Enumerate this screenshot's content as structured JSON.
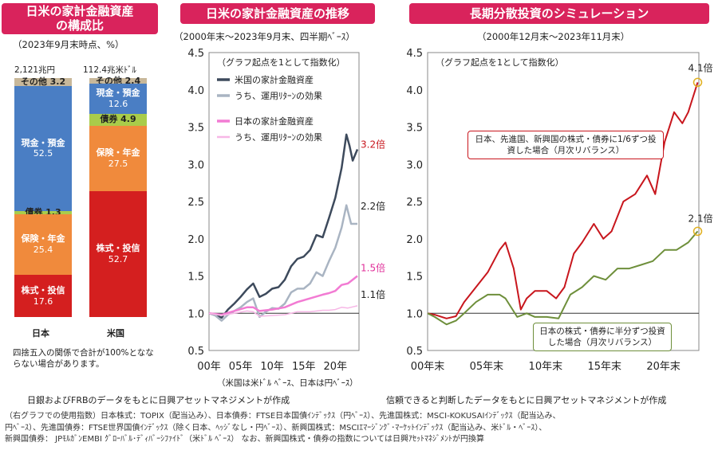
{
  "panels": {
    "composition": {
      "title_line1": "日米の家計金融資産",
      "title_line2": "の構成比",
      "subtitle": "（2023年9月末時点、%）",
      "japan": {
        "total": "2,121兆円",
        "label": "日本",
        "segments": [
          {
            "name": "その他",
            "value": 3.2,
            "color": "#c8b89a"
          },
          {
            "name": "現金・預金",
            "value": 52.5,
            "color": "#4a7ec4"
          },
          {
            "name": "債券",
            "value": 1.3,
            "color": "#a9cc4a"
          },
          {
            "name": "保険・年金",
            "value": 25.4,
            "color": "#f08a3c"
          },
          {
            "name": "株式・投信",
            "value": 17.6,
            "color": "#d41f1f"
          }
        ]
      },
      "us": {
        "total": "112.4兆米ﾄﾞﾙ",
        "label": "米国",
        "segments": [
          {
            "name": "その他",
            "value": 2.4,
            "color": "#c8b89a"
          },
          {
            "name": "現金・預金",
            "value": 12.6,
            "color": "#4a7ec4"
          },
          {
            "name": "債券",
            "value": 4.9,
            "color": "#a9cc4a"
          },
          {
            "name": "保険・年金",
            "value": 27.5,
            "color": "#f08a3c"
          },
          {
            "name": "株式・投信",
            "value": 52.7,
            "color": "#d41f1f"
          }
        ]
      },
      "note": "四捨五入の関係で合計が100%となならない場合があります。"
    },
    "trend": {
      "title": "日米の家計金融資産の推移",
      "subtitle": "（2000年末～2023年9月末、四半期ﾍﾞｰｽ）",
      "axis_note": "（米国は米ﾄﾞﾙ ﾍﾞｰｽ、日本は円ﾍﾞｰｽ）"
    },
    "sim": {
      "title": "長期分散投資のシミュレーション",
      "subtitle": "（2000年12月末～2023年11月末）",
      "annot_red": "日本、先進国、新興国の株式・債券に1/6ずつ投資した場合（月次リバランス）",
      "annot_green": "日本の株式・債券に半分ずつ投資した場合（月次リバランス）"
    }
  },
  "chart_data": [
    {
      "type": "line",
      "title": "日米の家計金融資産の推移",
      "note": "（グラフ起点を1として指数化）",
      "ylim": [
        0.5,
        4.5
      ],
      "yticks": [
        "0.5",
        "1.0",
        "1.5",
        "2.0",
        "2.5",
        "3.0",
        "3.5",
        "4.0",
        "4.5"
      ],
      "xticks": [
        "00年",
        "05年",
        "10年",
        "15年",
        "20年"
      ],
      "xlim": [
        2000,
        2023.75
      ],
      "series": [
        {
          "name": "米国の家計金融資産",
          "color": "#3d4a5c",
          "end_label": "3.2倍",
          "points": [
            [
              2000,
              1.0
            ],
            [
              2001,
              0.98
            ],
            [
              2002,
              0.94
            ],
            [
              2003,
              1.05
            ],
            [
              2004,
              1.13
            ],
            [
              2005,
              1.22
            ],
            [
              2006,
              1.32
            ],
            [
              2007,
              1.4
            ],
            [
              2008,
              1.22
            ],
            [
              2009,
              1.26
            ],
            [
              2010,
              1.33
            ],
            [
              2011,
              1.35
            ],
            [
              2012,
              1.45
            ],
            [
              2013,
              1.63
            ],
            [
              2014,
              1.73
            ],
            [
              2015,
              1.76
            ],
            [
              2016,
              1.85
            ],
            [
              2017,
              2.05
            ],
            [
              2018,
              2.02
            ],
            [
              2019,
              2.28
            ],
            [
              2020,
              2.55
            ],
            [
              2021,
              2.95
            ],
            [
              2021.75,
              3.4
            ],
            [
              2022.25,
              3.25
            ],
            [
              2022.75,
              3.05
            ],
            [
              2023.5,
              3.2
            ]
          ]
        },
        {
          "name": "うち、運用ﾘﾀｰﾝの効果",
          "color": "#a9b4c2",
          "end_label": "2.2倍",
          "points": [
            [
              2000,
              1.0
            ],
            [
              2001,
              0.97
            ],
            [
              2002,
              0.9
            ],
            [
              2003,
              0.98
            ],
            [
              2004,
              1.03
            ],
            [
              2005,
              1.08
            ],
            [
              2006,
              1.15
            ],
            [
              2007,
              1.2
            ],
            [
              2008,
              0.95
            ],
            [
              2009,
              1.02
            ],
            [
              2010,
              1.07
            ],
            [
              2011,
              1.06
            ],
            [
              2012,
              1.13
            ],
            [
              2013,
              1.28
            ],
            [
              2014,
              1.33
            ],
            [
              2015,
              1.33
            ],
            [
              2016,
              1.4
            ],
            [
              2017,
              1.55
            ],
            [
              2018,
              1.5
            ],
            [
              2019,
              1.7
            ],
            [
              2020,
              1.88
            ],
            [
              2021,
              2.15
            ],
            [
              2021.75,
              2.45
            ],
            [
              2022.5,
              2.2
            ],
            [
              2023.5,
              2.2
            ]
          ]
        },
        {
          "name": "日本の家計金融資産",
          "color": "#f27bd3",
          "end_label": "1.5倍",
          "points": [
            [
              2000,
              1.0
            ],
            [
              2002,
              0.98
            ],
            [
              2004,
              1.03
            ],
            [
              2006,
              1.08
            ],
            [
              2007,
              1.08
            ],
            [
              2008,
              1.03
            ],
            [
              2010,
              1.05
            ],
            [
              2012,
              1.08
            ],
            [
              2014,
              1.15
            ],
            [
              2016,
              1.2
            ],
            [
              2018,
              1.25
            ],
            [
              2019,
              1.27
            ],
            [
              2020,
              1.3
            ],
            [
              2021,
              1.38
            ],
            [
              2022,
              1.4
            ],
            [
              2023.5,
              1.5
            ]
          ]
        },
        {
          "name": "うち、運用ﾘﾀｰﾝの効果",
          "color": "#f7b7e6",
          "end_label": "1.1倍",
          "points": [
            [
              2000,
              1.0
            ],
            [
              2002,
              0.97
            ],
            [
              2004,
              1.0
            ],
            [
              2006,
              1.03
            ],
            [
              2007,
              1.02
            ],
            [
              2008,
              0.96
            ],
            [
              2010,
              0.97
            ],
            [
              2012,
              0.98
            ],
            [
              2014,
              1.02
            ],
            [
              2016,
              1.02
            ],
            [
              2018,
              1.04
            ],
            [
              2019,
              1.04
            ],
            [
              2020,
              1.05
            ],
            [
              2021,
              1.08
            ],
            [
              2022,
              1.07
            ],
            [
              2023.5,
              1.1
            ]
          ]
        }
      ]
    },
    {
      "type": "line",
      "title": "長期分散投資のシミュレーション",
      "note": "（グラフ起点を1として指数化）",
      "ylim": [
        0.5,
        4.5
      ],
      "yticks": [
        "0.5",
        "1.0",
        "1.5",
        "2.0",
        "2.5",
        "3.0",
        "3.5",
        "4.0",
        "4.5"
      ],
      "xticks": [
        "00年末",
        "05年末",
        "10年末",
        "15年末",
        "20年末"
      ],
      "xlim": [
        2000.9,
        2023.9
      ],
      "series": [
        {
          "name": "日本、先進国、新興国の株式・債券に1/6ずつ",
          "color": "#c8161d",
          "end_label": "4.1倍",
          "points": [
            [
              2000.9,
              1.0
            ],
            [
              2001.5,
              0.98
            ],
            [
              2002.5,
              0.93
            ],
            [
              2003.3,
              0.96
            ],
            [
              2004,
              1.15
            ],
            [
              2005,
              1.35
            ],
            [
              2006,
              1.55
            ],
            [
              2007,
              1.85
            ],
            [
              2007.5,
              1.95
            ],
            [
              2008.2,
              1.6
            ],
            [
              2008.8,
              1.05
            ],
            [
              2009.3,
              1.2
            ],
            [
              2010,
              1.3
            ],
            [
              2011,
              1.3
            ],
            [
              2011.8,
              1.2
            ],
            [
              2012.5,
              1.35
            ],
            [
              2013.3,
              1.8
            ],
            [
              2014,
              1.95
            ],
            [
              2015,
              2.2
            ],
            [
              2015.8,
              2.0
            ],
            [
              2016.5,
              2.1
            ],
            [
              2017.5,
              2.5
            ],
            [
              2018.5,
              2.6
            ],
            [
              2019.5,
              2.85
            ],
            [
              2020.2,
              2.6
            ],
            [
              2021,
              3.3
            ],
            [
              2021.8,
              3.7
            ],
            [
              2022.5,
              3.55
            ],
            [
              2023,
              3.7
            ],
            [
              2023.8,
              4.1
            ]
          ]
        },
        {
          "name": "日本の株式・債券に半分ずつ",
          "color": "#6e8f3b",
          "end_label": "2.1倍",
          "points": [
            [
              2000.9,
              1.0
            ],
            [
              2001.5,
              0.95
            ],
            [
              2002.5,
              0.85
            ],
            [
              2003.3,
              0.9
            ],
            [
              2004,
              1.0
            ],
            [
              2005,
              1.15
            ],
            [
              2006,
              1.25
            ],
            [
              2007,
              1.25
            ],
            [
              2007.5,
              1.2
            ],
            [
              2008.5,
              0.95
            ],
            [
              2009.3,
              1.0
            ],
            [
              2010,
              0.95
            ],
            [
              2011,
              0.95
            ],
            [
              2012,
              0.93
            ],
            [
              2013,
              1.25
            ],
            [
              2014,
              1.35
            ],
            [
              2015,
              1.5
            ],
            [
              2016,
              1.45
            ],
            [
              2017,
              1.6
            ],
            [
              2018,
              1.6
            ],
            [
              2019,
              1.65
            ],
            [
              2020,
              1.7
            ],
            [
              2021,
              1.85
            ],
            [
              2022,
              1.85
            ],
            [
              2023,
              1.95
            ],
            [
              2023.8,
              2.1
            ]
          ]
        }
      ]
    }
  ],
  "footer": {
    "source_left": "日銀およびFRBのデータをもとに日興アセットマネジメントが作成",
    "source_right": "信頼できると判断したデータをもとに日興アセットマネジメントが作成",
    "line1": "（右グラフでの使用指数）日本株式：TOPIX（配当込み）、日本債券：FTSE日本国債ｲﾝﾃﾞｯｸｽ（円ﾍﾞｰｽ）、先進国株式：MSCI-KOKUSAIｲﾝﾃﾞｯｸｽ（配当込み、",
    "line2": "円ﾍﾞｰｽ）、先進国債券：FTSE世界国債ｲﾝﾃﾞｯｸｽ（除く日本、ﾍｯｼﾞなし・円ﾍﾞｰｽ）、新興国株式：MSCIｴﾏｰｼﾞﾝｸﾞ･ﾏｰｹｯﾄｲﾝﾃﾞｯｸｽ（配当込み、米ﾄﾞﾙ・ﾍﾞｰｽ）、",
    "line3": "新興国債券： JPﾓﾙｶﾞﾝEMBI ｸﾞﾛｰﾊﾞﾙ･ﾃﾞｨﾊﾞｰｼﾌｧｲﾄﾞ（米ﾄﾞﾙ ﾍﾞｰｽ） なお、新興国株式・債券の指数については日興ｱｾｯﾄﾏﾈｼﾞﾒﾝﾄが円換算"
  }
}
